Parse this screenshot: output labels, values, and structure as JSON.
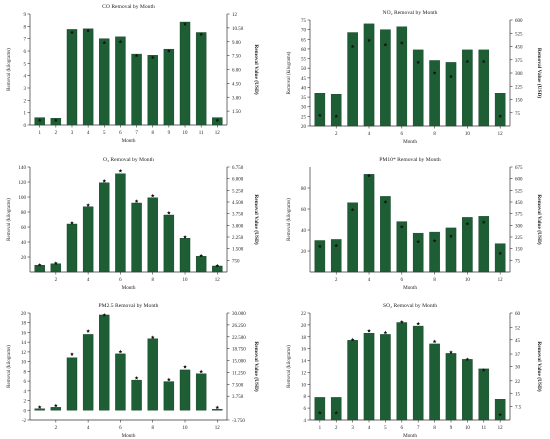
{
  "colors": {
    "bar": "#1e5e34",
    "bar_edge": "#0f3d20",
    "marker": "#111111",
    "axis": "#333333"
  },
  "chart_data": [
    {
      "type": "bar",
      "title": "CO Removal by Month",
      "xlabel": "Month",
      "ylabel": "Removal (kilograms)",
      "ylabel_right": "Removal Value (USD)",
      "categories": [
        "1",
        "2",
        "3",
        "4",
        "5",
        "6",
        "7",
        "8",
        "9",
        "10",
        "11",
        "12"
      ],
      "xtick_labels": [
        "1",
        "2",
        "3",
        "4",
        "5",
        "6",
        "7",
        "8",
        "9",
        "10",
        "11",
        "12"
      ],
      "ylim": [
        0,
        9
      ],
      "yticks": [
        0,
        1,
        2,
        3,
        4,
        5,
        6,
        7,
        8,
        9
      ],
      "ylim_right": [
        0,
        12
      ],
      "yticks_right": [
        "1.50",
        "3.00",
        "4.50",
        "6.00",
        "7.50",
        "9.00",
        "10.50",
        "12"
      ],
      "yticks_right_values": [
        1.5,
        3,
        4.5,
        6,
        7.5,
        9,
        10.5,
        12
      ],
      "series": [
        {
          "values": [
            0.6,
            0.55,
            7.75,
            7.8,
            7.0,
            7.15,
            5.75,
            5.65,
            6.15,
            8.35,
            7.5,
            0.6
          ]
        },
        {
          "values": [
            0.5,
            0.5,
            10.0,
            10.2,
            8.9,
            9.0,
            7.5,
            7.3,
            8.0,
            10.9,
            9.8,
            0.5
          ]
        }
      ]
    },
    {
      "type": "bar",
      "title": "NO₂ Removal by Month",
      "xlabel": "Month",
      "ylabel": "Removal (kilograms)",
      "ylabel_right": "Removal Value (USD)",
      "categories": [
        "1",
        "2",
        "3",
        "4",
        "5",
        "6",
        "7",
        "8",
        "9",
        "10",
        "11",
        "12"
      ],
      "xtick_labels": [
        "2",
        "4",
        "6",
        "8",
        "10",
        "12"
      ],
      "ylim": [
        20,
        75
      ],
      "yticks": [
        20,
        25,
        30,
        35,
        40,
        45,
        50,
        55,
        60,
        65,
        70,
        75
      ],
      "ylim_right": [
        0,
        600
      ],
      "yticks_right": [
        "75",
        "150",
        "225",
        "300",
        "375",
        "450",
        "525",
        "600"
      ],
      "yticks_right_values": [
        75,
        150,
        225,
        300,
        375,
        450,
        525,
        600
      ],
      "series": [
        {
          "values": [
            37,
            36.5,
            68.5,
            73,
            70,
            71.5,
            59.5,
            54,
            53,
            59.5,
            59.5,
            37
          ]
        },
        {
          "values": [
            60,
            55,
            450,
            485,
            460,
            470,
            360,
            300,
            280,
            365,
            365,
            55
          ]
        }
      ]
    },
    {
      "type": "bar",
      "title": "O₃ Removal by Month",
      "xlabel": "Month",
      "ylabel": "Removal (kilograms)",
      "ylabel_right": "Removal Value (USD)",
      "categories": [
        "1",
        "2",
        "3",
        "4",
        "5",
        "6",
        "7",
        "8",
        "9",
        "10",
        "11",
        "12"
      ],
      "xtick_labels": [
        "2",
        "4",
        "6",
        "8",
        "10",
        "12"
      ],
      "ylim": [
        0,
        140
      ],
      "yticks": [
        20,
        40,
        60,
        80,
        100,
        120,
        140
      ],
      "ylim_right": [
        0,
        6750
      ],
      "yticks_right": [
        "750",
        "1.500",
        "2.250",
        "3.000",
        "3.750",
        "4.500",
        "5.250",
        "6.000",
        "6.750"
      ],
      "yticks_right_values": [
        750,
        1500,
        2250,
        3000,
        3750,
        4500,
        5250,
        6000,
        6750
      ],
      "series": [
        {
          "values": [
            9,
            11,
            64,
            87,
            119,
            131,
            92,
            99,
            76,
            45,
            21,
            8
          ]
        },
        {
          "values": [
            450,
            560,
            3150,
            4300,
            5850,
            6500,
            4550,
            4900,
            3800,
            2250,
            1050,
            400
          ]
        }
      ]
    },
    {
      "type": "bar",
      "title": "PM10* Removal by Month",
      "xlabel": "Month",
      "ylabel": "Removal (kilograms)",
      "ylabel_right": "Removal Value (USD)",
      "categories": [
        "1",
        "2",
        "3",
        "4",
        "5",
        "6",
        "7",
        "8",
        "9",
        "10",
        "11",
        "12"
      ],
      "xtick_labels": [
        "2",
        "4",
        "6",
        "8",
        "10",
        "12"
      ],
      "ylim": [
        0,
        100
      ],
      "yticks": [
        20,
        40,
        60,
        80
      ],
      "ylim_right": [
        0,
        675
      ],
      "yticks_right": [
        "75",
        "150",
        "225",
        "300",
        "375",
        "450",
        "525",
        "600",
        "675"
      ],
      "yticks_right_values": [
        75,
        150,
        225,
        300,
        375,
        450,
        525,
        600,
        675
      ],
      "series": [
        {
          "values": [
            30,
            31,
            66,
            93,
            72,
            48,
            37,
            38,
            42,
            52,
            53,
            27
          ]
        },
        {
          "values": [
            165,
            170,
            400,
            620,
            450,
            290,
            195,
            200,
            230,
            310,
            320,
            120
          ]
        }
      ]
    },
    {
      "type": "bar",
      "title": "PM2.5 Removal by Month",
      "xlabel": "Month",
      "ylabel": "Removal (kilograms)",
      "ylabel_right": "Removal Value (USD)",
      "categories": [
        "1",
        "2",
        "3",
        "4",
        "5",
        "6",
        "7",
        "8",
        "9",
        "10",
        "11",
        "12"
      ],
      "xtick_labels": [
        "2",
        "4",
        "6",
        "8",
        "10",
        "12"
      ],
      "ylim": [
        -2,
        20
      ],
      "yticks": [
        -2,
        0,
        2,
        4,
        6,
        8,
        10,
        12,
        14,
        16,
        18,
        20
      ],
      "ylim_right": [
        -3750,
        30000
      ],
      "yticks_right": [
        "-3.750",
        "3.750",
        "7.500",
        "11.250",
        "15.000",
        "18.750",
        "22.500",
        "26.250",
        "30.000"
      ],
      "yticks_right_values": [
        -3750,
        3750,
        7500,
        11250,
        15000,
        18750,
        22500,
        26250,
        30000
      ],
      "series": [
        {
          "values": [
            0.3,
            0.6,
            10.8,
            15.6,
            19.6,
            11.6,
            6.2,
            14.7,
            5.9,
            8.3,
            7.5,
            0.2
          ]
        },
        {
          "values": [
            300,
            800,
            17000,
            24300,
            30000,
            17800,
            9500,
            22300,
            9000,
            13000,
            11500,
            200
          ]
        }
      ]
    },
    {
      "type": "bar",
      "title": "SO₂ Removal by Month",
      "xlabel": "Month",
      "ylabel": "Removal (kilograms)",
      "ylabel_right": "Removal Value (USD)",
      "categories": [
        "1",
        "2",
        "3",
        "4",
        "5",
        "6",
        "7",
        "8",
        "9",
        "10",
        "11",
        "12"
      ],
      "xtick_labels": [
        "1",
        "2",
        "3",
        "4",
        "5",
        "6",
        "7",
        "8",
        "9",
        "10",
        "11",
        "12"
      ],
      "ylim": [
        4,
        22
      ],
      "yticks": [
        4,
        6,
        8,
        10,
        12,
        14,
        16,
        18,
        20,
        22
      ],
      "ylim_right": [
        0,
        60
      ],
      "yticks_right": [
        "7.5",
        "15",
        "22",
        "30",
        "37",
        "45",
        "52",
        "60"
      ],
      "yticks_right_values": [
        7.5,
        15,
        22,
        30,
        37,
        45,
        52,
        60
      ],
      "series": [
        {
          "values": [
            7.8,
            7.8,
            17.4,
            18.6,
            18.4,
            20.4,
            19.8,
            16.8,
            15.2,
            14.2,
            12.6,
            7.5
          ]
        },
        {
          "values": [
            4,
            4,
            45,
            50,
            49,
            55,
            54,
            44,
            38,
            34,
            28,
            3
          ]
        }
      ]
    }
  ]
}
